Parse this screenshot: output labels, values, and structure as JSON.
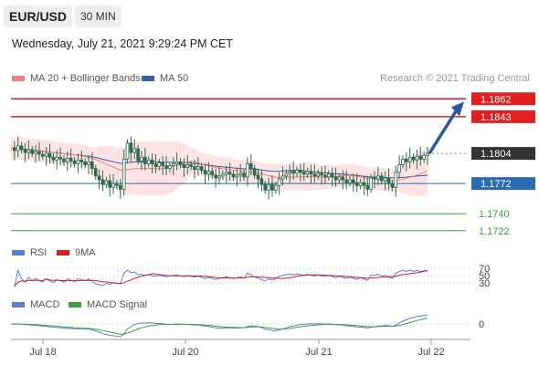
{
  "header": {
    "symbol": "EUR/USD",
    "timeframe": "30 MIN",
    "datetime": "Wednesday, July 21, 2021 9:29:24 PM CET"
  },
  "colors": {
    "resistance": "#e02020",
    "pivot": "#2b6cb0",
    "support": "#3aa43a",
    "last": "#333333",
    "ma20": "#f08080",
    "ma50": "#3a5fa0",
    "band_fill": "#fde3e3",
    "rsi": "#5b7fd6",
    "rsi_ma": "#d02020",
    "macd": "#5b7fd6",
    "macd_signal": "#3aa43a",
    "candle": "#2e6a50",
    "arrow": "#2b5a9a"
  },
  "chart_data": [
    {
      "type": "candlestick",
      "title": "",
      "legend": [
        {
          "name": "MA 20 + Bollinger Bands",
          "color": "#f08080"
        },
        {
          "name": "MA 50",
          "color": "#3a5fa0"
        }
      ],
      "source": "Research © 2021 Trading Central",
      "x_ticks": [
        "Jul 18",
        "Jul 20",
        "Jul 21",
        "Jul 22"
      ],
      "ylim": [
        1.7705,
        1.187
      ],
      "y_range": [
        1.1715,
        1.187
      ],
      "levels": [
        {
          "value": 1.1862,
          "label": "1.1862",
          "kind": "resistance"
        },
        {
          "value": 1.1843,
          "label": "1.1843",
          "kind": "resistance"
        },
        {
          "value": 1.1804,
          "label": "1.1804",
          "kind": "last"
        },
        {
          "value": 1.1772,
          "label": "1.1772",
          "kind": "pivot"
        },
        {
          "value": 1.174,
          "label": "1.1740",
          "kind": "support"
        },
        {
          "value": 1.1722,
          "label": "1.1722",
          "kind": "support"
        }
      ],
      "close": [
        1.181,
        1.1807,
        1.1812,
        1.1808,
        1.1805,
        1.1808,
        1.1804,
        1.1806,
        1.1803,
        1.1801,
        1.1804,
        1.18,
        1.1797,
        1.18,
        1.1798,
        1.1795,
        1.1799,
        1.1796,
        1.1793,
        1.1797,
        1.1795,
        1.1792,
        1.1795,
        1.1788,
        1.178,
        1.1776,
        1.1771,
        1.1775,
        1.1768,
        1.1772,
        1.177,
        1.1766,
        1.1798,
        1.1815,
        1.1805,
        1.1809,
        1.1796,
        1.18,
        1.1793,
        1.1797,
        1.1793,
        1.179,
        1.1794,
        1.1791,
        1.1788,
        1.1791,
        1.1793,
        1.1795,
        1.1792,
        1.1789,
        1.1792,
        1.179,
        1.1787,
        1.179,
        1.1786,
        1.1782,
        1.1785,
        1.1781,
        1.1778,
        1.178,
        1.1782,
        1.1784,
        1.1782,
        1.1779,
        1.1781,
        1.1783,
        1.1779,
        1.1793,
        1.1788,
        1.1781,
        1.1777,
        1.1771,
        1.1765,
        1.1771,
        1.1765,
        1.177,
        1.1777,
        1.178,
        1.1783,
        1.1785,
        1.1783,
        1.1786,
        1.1784,
        1.1782,
        1.1785,
        1.1782,
        1.178,
        1.1783,
        1.1781,
        1.1779,
        1.1782,
        1.1779,
        1.1776,
        1.1779,
        1.1776,
        1.1773,
        1.1776,
        1.1773,
        1.177,
        1.1773,
        1.177,
        1.1766,
        1.1778,
        1.1777,
        1.178,
        1.1775,
        1.1778,
        1.1772,
        1.1768,
        1.1784,
        1.1792,
        1.1798,
        1.1795,
        1.18,
        1.1797,
        1.1801,
        1.1798,
        1.1802,
        1.1804
      ]
    },
    {
      "type": "line",
      "title": "RSI",
      "series": [
        {
          "name": "RSI"
        },
        {
          "name": "9MA"
        }
      ],
      "y_ticks": [
        "70",
        "50",
        "30"
      ],
      "ylim": [
        20,
        80
      ]
    },
    {
      "type": "line",
      "title": "MACD",
      "series": [
        {
          "name": "MACD"
        },
        {
          "name": "MACD Signal"
        }
      ],
      "y_ticks": [
        "0"
      ]
    }
  ]
}
